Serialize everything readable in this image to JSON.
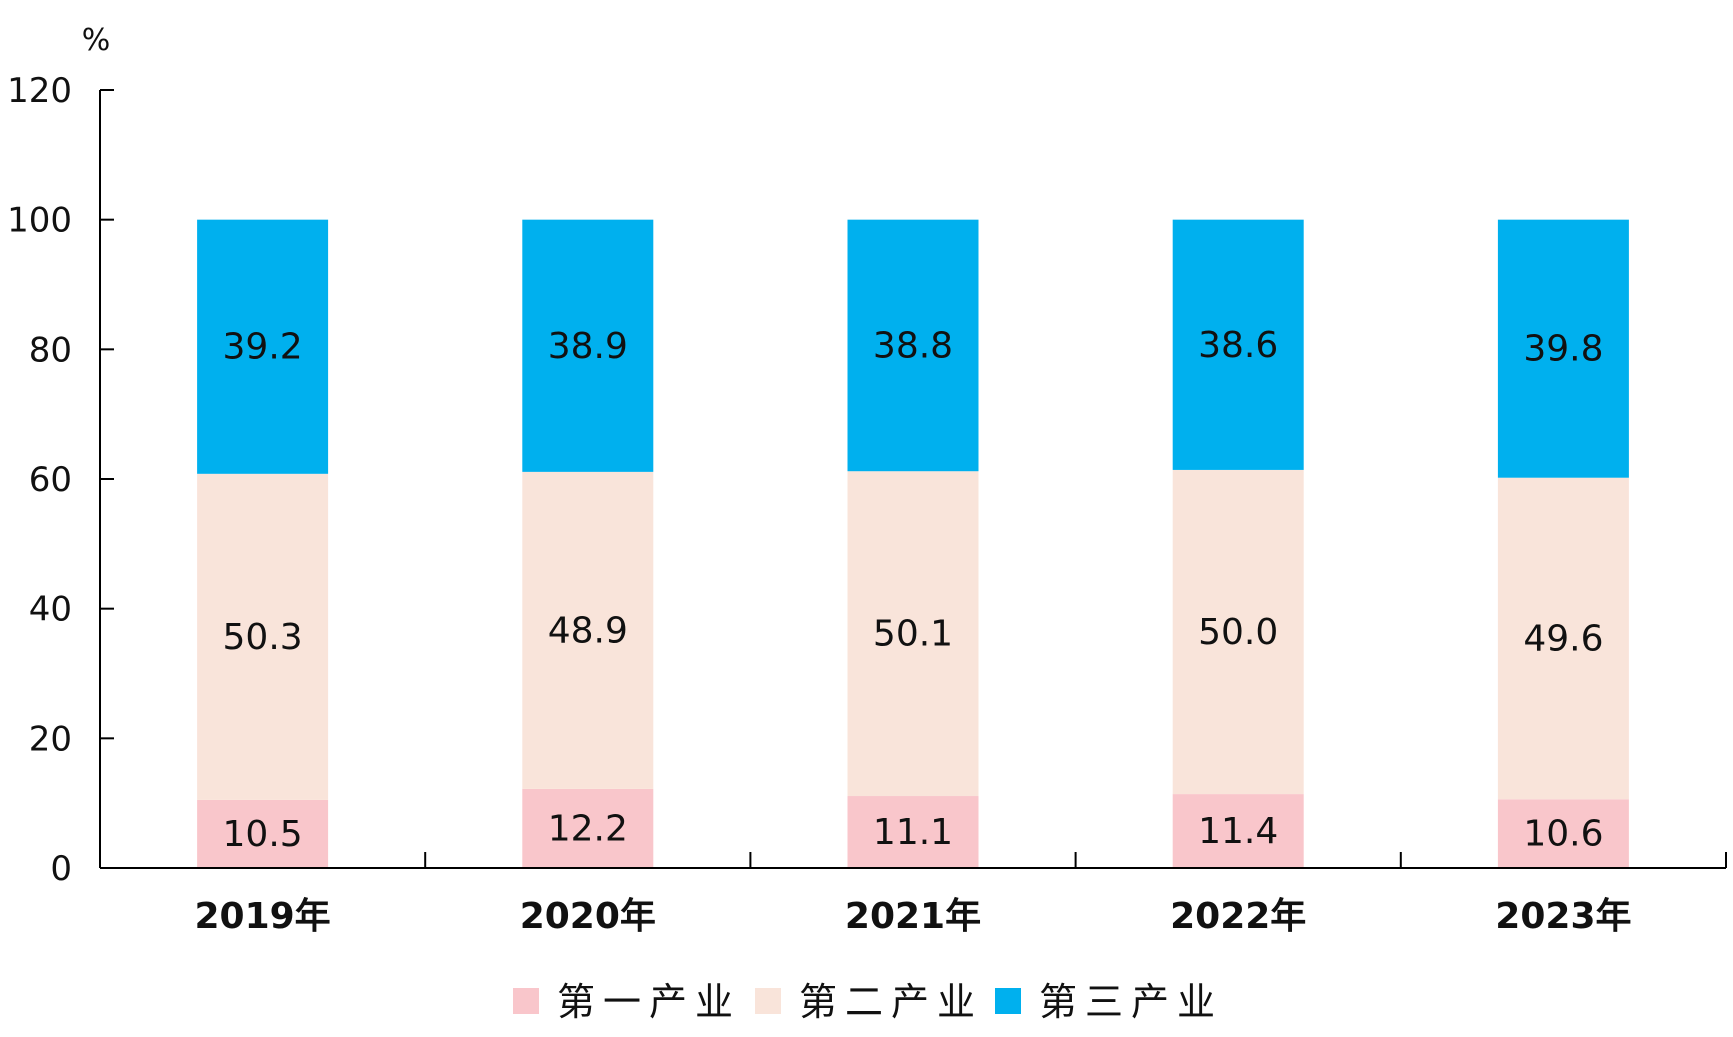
{
  "chart_data": {
    "type": "bar",
    "stacked": true,
    "title": "",
    "xlabel": "",
    "ylabel": "%",
    "ylim": [
      0,
      120
    ],
    "yticks": [
      0,
      20,
      40,
      60,
      80,
      100,
      120
    ],
    "grid": false,
    "legend_position": "bottom",
    "categories": [
      "2019年",
      "2020年",
      "2021年",
      "2022年",
      "2023年"
    ],
    "series": [
      {
        "name": "第一产业",
        "color": "#f9c6cb",
        "values": [
          10.5,
          12.2,
          11.1,
          11.4,
          10.6
        ]
      },
      {
        "name": "第二产业",
        "color": "#f9e4da",
        "values": [
          50.3,
          48.9,
          50.1,
          50.0,
          49.6
        ]
      },
      {
        "name": "第三产业",
        "color": "#00b0ee",
        "values": [
          39.2,
          38.9,
          38.8,
          38.6,
          39.8
        ]
      }
    ]
  }
}
